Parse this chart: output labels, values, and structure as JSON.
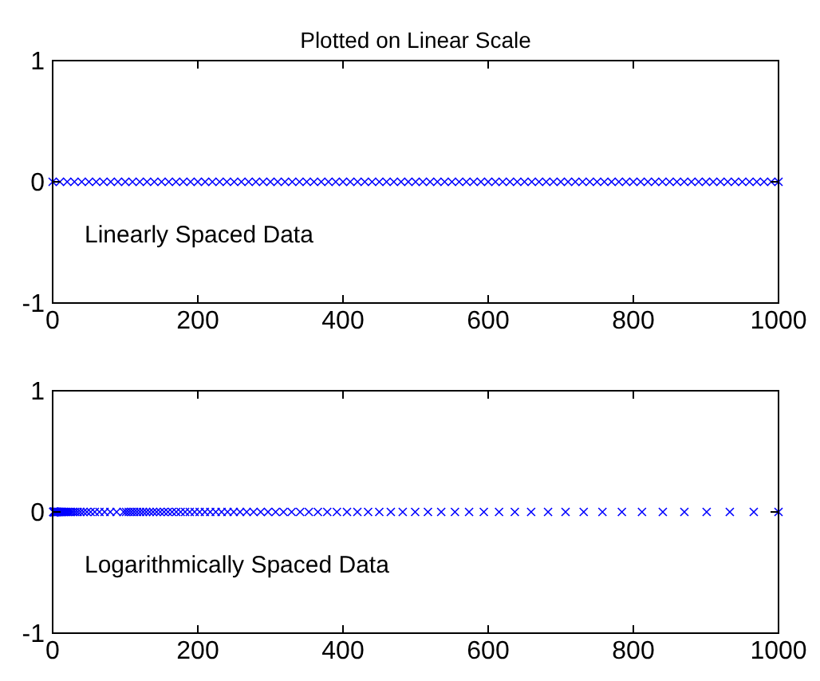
{
  "chart_data": [
    {
      "type": "scatter",
      "title": "Plotted on Linear Scale",
      "annotations": [
        "Linearly Spaced Data"
      ],
      "marker": "cross",
      "xlim": [
        0,
        1000
      ],
      "ylim": [
        -1,
        1
      ],
      "xticks": [
        0,
        200,
        400,
        600,
        800,
        1000
      ],
      "yticks": [
        -1,
        0,
        1
      ],
      "series": [
        {
          "color": "#0000ff",
          "x": [
            0,
            10,
            20,
            30,
            40,
            50,
            60,
            70,
            80,
            90,
            100,
            110,
            120,
            130,
            140,
            150,
            160,
            170,
            180,
            190,
            200,
            210,
            220,
            230,
            240,
            250,
            260,
            270,
            280,
            290,
            300,
            310,
            320,
            330,
            340,
            350,
            360,
            370,
            380,
            390,
            400,
            410,
            420,
            430,
            440,
            450,
            460,
            470,
            480,
            490,
            500,
            510,
            520,
            530,
            540,
            550,
            560,
            570,
            580,
            590,
            600,
            610,
            620,
            630,
            640,
            650,
            660,
            670,
            680,
            690,
            700,
            710,
            720,
            730,
            740,
            750,
            760,
            770,
            780,
            790,
            800,
            810,
            820,
            830,
            840,
            850,
            860,
            870,
            880,
            890,
            900,
            910,
            920,
            930,
            940,
            950,
            960,
            970,
            980,
            990,
            1000
          ],
          "values": [
            0,
            0,
            0,
            0,
            0,
            0,
            0,
            0,
            0,
            0,
            0,
            0,
            0,
            0,
            0,
            0,
            0,
            0,
            0,
            0,
            0,
            0,
            0,
            0,
            0,
            0,
            0,
            0,
            0,
            0,
            0,
            0,
            0,
            0,
            0,
            0,
            0,
            0,
            0,
            0,
            0,
            0,
            0,
            0,
            0,
            0,
            0,
            0,
            0,
            0,
            0,
            0,
            0,
            0,
            0,
            0,
            0,
            0,
            0,
            0,
            0,
            0,
            0,
            0,
            0,
            0,
            0,
            0,
            0,
            0,
            0,
            0,
            0,
            0,
            0,
            0,
            0,
            0,
            0,
            0,
            0,
            0,
            0,
            0,
            0,
            0,
            0,
            0,
            0,
            0,
            0,
            0,
            0,
            0,
            0,
            0,
            0,
            0,
            0,
            0,
            0
          ]
        }
      ]
    },
    {
      "type": "scatter",
      "annotations": [
        "Logarithmically Spaced Data"
      ],
      "marker": "cross",
      "xlim": [
        0,
        1000
      ],
      "ylim": [
        -1,
        1
      ],
      "xticks": [
        0,
        200,
        400,
        600,
        800,
        1000
      ],
      "yticks": [
        -1,
        0,
        1
      ],
      "series": [
        {
          "color": "#0000ff",
          "x": [
            1,
            1.1,
            1.2,
            1.4,
            1.5,
            1.7,
            1.9,
            2.1,
            2.3,
            2.5,
            2.8,
            3.1,
            3.5,
            3.9,
            4.3,
            4.8,
            5.3,
            5.9,
            6.5,
            7.2,
            8,
            8.9,
            9.9,
            11,
            12.2,
            13.5,
            15,
            16.7,
            18.5,
            20.5,
            22.8,
            25.3,
            28,
            31.1,
            34.5,
            38.3,
            42.5,
            47.2,
            52.3,
            58.1,
            64.5,
            71.5,
            79.4,
            88.1,
            97.7,
            101.2,
            104.8,
            108.5,
            112.3,
            116.3,
            120.4,
            124.6,
            129,
            133.6,
            138.3,
            143.2,
            148.2,
            153.5,
            158.9,
            164.5,
            170.3,
            176.3,
            182.5,
            188.9,
            195.6,
            202.5,
            209.7,
            217.1,
            224.7,
            232.7,
            240.9,
            249.4,
            258.2,
            267.3,
            276.8,
            286.6,
            296.7,
            307.2,
            318,
            329.2,
            340.9,
            352.9,
            365.4,
            378.3,
            391.6,
            405.5,
            419.8,
            434.6,
            450,
            465.9,
            482.3,
            499.4,
            517,
            535.3,
            554.2,
            573.7,
            594,
            615,
            636.7,
            659.2,
            682.5,
            706.6,
            731.6,
            757.4,
            784.2,
            811.9,
            840.6,
            870.3,
            901,
            932.9,
            965.9,
            1000
          ],
          "values": [
            0,
            0,
            0,
            0,
            0,
            0,
            0,
            0,
            0,
            0,
            0,
            0,
            0,
            0,
            0,
            0,
            0,
            0,
            0,
            0,
            0,
            0,
            0,
            0,
            0,
            0,
            0,
            0,
            0,
            0,
            0,
            0,
            0,
            0,
            0,
            0,
            0,
            0,
            0,
            0,
            0,
            0,
            0,
            0,
            0,
            0,
            0,
            0,
            0,
            0,
            0,
            0,
            0,
            0,
            0,
            0,
            0,
            0,
            0,
            0,
            0,
            0,
            0,
            0,
            0,
            0,
            0,
            0,
            0,
            0,
            0,
            0,
            0,
            0,
            0,
            0,
            0,
            0,
            0,
            0,
            0,
            0,
            0,
            0,
            0,
            0,
            0,
            0,
            0,
            0,
            0,
            0,
            0,
            0,
            0,
            0,
            0,
            0,
            0,
            0,
            0,
            0,
            0,
            0,
            0,
            0,
            0,
            0,
            0,
            0,
            0,
            0
          ]
        }
      ]
    }
  ]
}
